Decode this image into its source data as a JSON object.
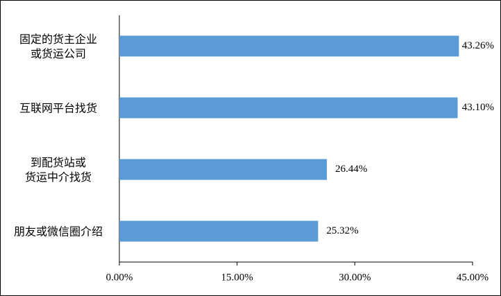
{
  "chart_data": {
    "type": "hbar",
    "categories": [
      "固定的货主企业\n或货运公司",
      "互联网平台找货",
      "到配货站或\n货运中介找货",
      "朋友或微信圈介绍"
    ],
    "values": [
      43.26,
      43.1,
      26.44,
      25.32
    ],
    "value_labels": [
      "43.26%",
      "43.10%",
      "26.44%",
      "25.32%"
    ],
    "color": "#5b9bd5",
    "xlim": [
      0,
      45
    ],
    "xticks": [
      {
        "value": 0,
        "label": "0.00%"
      },
      {
        "value": 15,
        "label": "15.00%"
      },
      {
        "value": 30,
        "label": "30.00%"
      },
      {
        "value": 45,
        "label": "45.00%"
      }
    ]
  }
}
